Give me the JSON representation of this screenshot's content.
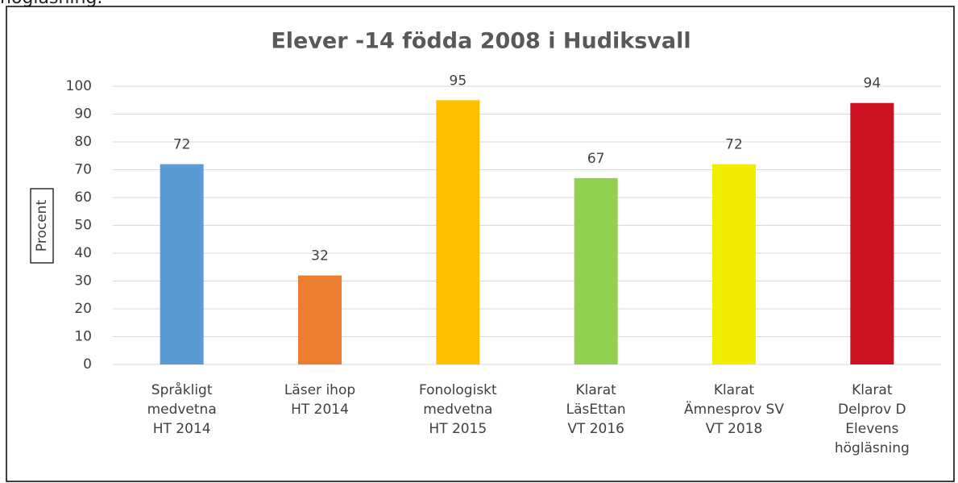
{
  "above_text": "högläsning.",
  "chart_data": {
    "type": "bar",
    "title": "Elever -14 födda 2008 i Hudiksvall",
    "y_label": "Procent",
    "categories": [
      "Språkligt\nmedvetna\nHT 2014",
      "Läser ihop\nHT 2014",
      "Fonologiskt\nmedvetna\nHT 2015",
      "Klarat\nLäsEttan\nVT 2016",
      "Klarat\nÄmnesprov SV\nVT 2018",
      "Klarat\nDelprov D\nElevens\nhögläsning"
    ],
    "values": [
      72,
      32,
      95,
      67,
      72,
      94
    ],
    "colors": [
      "#5b9bd5",
      "#ed7d31",
      "#ffc000",
      "#92d050",
      "#f2ec00",
      "#cc1122"
    ],
    "ylim": [
      0,
      100
    ],
    "yticks": [
      0,
      10,
      20,
      30,
      40,
      50,
      60,
      70,
      80,
      90,
      100
    ],
    "grid": true
  }
}
